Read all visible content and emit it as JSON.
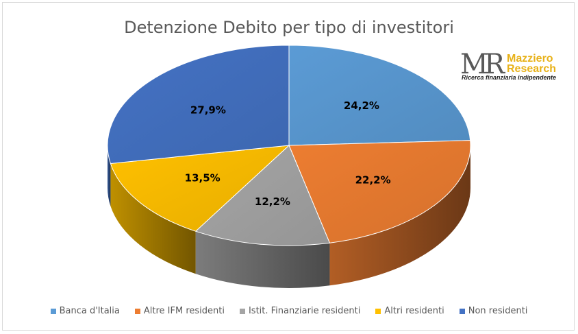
{
  "logo": {
    "mark": "MR",
    "brand_line1": "Mazziero",
    "brand_line2": "Research",
    "tagline": "Ricerca finanziaria indipendente"
  },
  "chart_data": {
    "type": "pie",
    "title": "Detenzione Debito per tipo di investitori",
    "legend_position": "bottom",
    "slices": [
      {
        "label": "Banca d'Italia",
        "value": 24.2,
        "value_label": "24,2%",
        "color": "#5b9bd5"
      },
      {
        "label": "Altre IFM residenti",
        "value": 22.2,
        "value_label": "22,2%",
        "color": "#ed7d31"
      },
      {
        "label": "Istit. Finanziarie residenti",
        "value": 12.2,
        "value_label": "12,2%",
        "color": "#a5a5a5"
      },
      {
        "label": "Altri residenti",
        "value": 13.5,
        "value_label": "13,5%",
        "color": "#ffc000"
      },
      {
        "label": "Non residenti",
        "value": 27.9,
        "value_label": "27,9%",
        "color": "#4472c4"
      }
    ]
  }
}
